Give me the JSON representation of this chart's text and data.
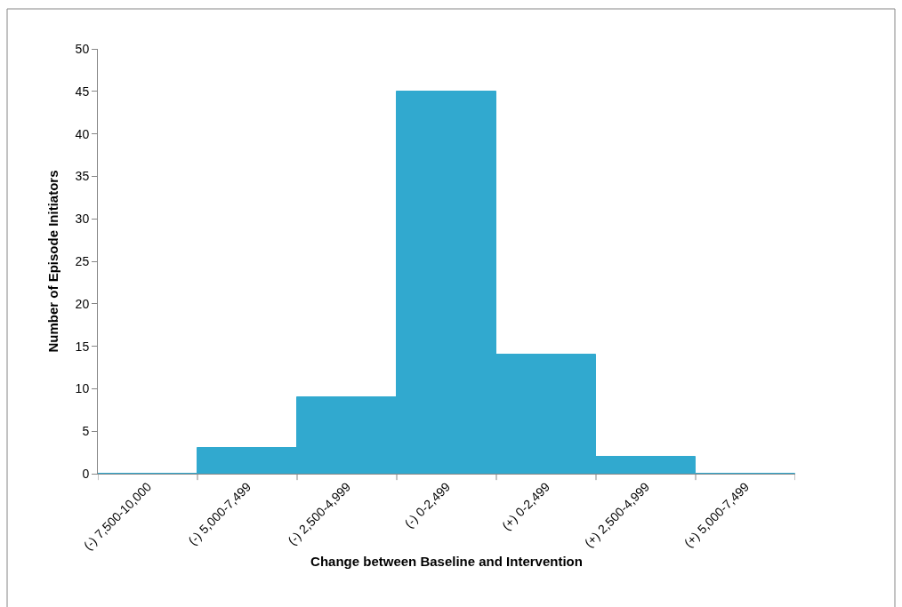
{
  "chart_data": {
    "type": "bar",
    "xlabel": "Change between Baseline and Intervention",
    "ylabel": "Number of Episode Initiators",
    "categories": [
      "(-) 7,500-10,000",
      "(-) 5,000-7,499",
      "(-) 2,500-4,999",
      "(-) 0-2,499",
      "(+) 0-2,499",
      "(+) 2,500-4,999",
      "(+) 5,000-7,499"
    ],
    "values": [
      0,
      3,
      9,
      45,
      14,
      2,
      0
    ],
    "color": "#31a9cf",
    "ylim": [
      0,
      50
    ],
    "yticks": [
      0,
      5,
      10,
      15,
      20,
      25,
      30,
      35,
      40,
      45,
      50
    ]
  }
}
